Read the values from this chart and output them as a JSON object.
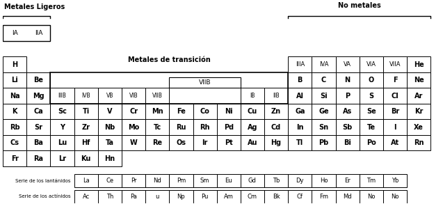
{
  "bg_color": "#ffffff",
  "label_metales_ligeros": "Metales Ligeros",
  "label_metales_transicion": "Metales de transición",
  "label_no_metales": "No metales",
  "label_serie_lantanidos": "Serie de los lantánidos",
  "label_serie_actinidos": "Serie de los actínidos",
  "elements_grid": [
    [
      "H",
      0,
      2
    ],
    [
      "He",
      17,
      2
    ],
    [
      "Li",
      0,
      3
    ],
    [
      "Be",
      1,
      3
    ],
    [
      "B",
      12,
      3
    ],
    [
      "C",
      13,
      3
    ],
    [
      "N",
      14,
      3
    ],
    [
      "O",
      15,
      3
    ],
    [
      "F",
      16,
      3
    ],
    [
      "Ne",
      17,
      3
    ],
    [
      "Na",
      0,
      4
    ],
    [
      "Mg",
      1,
      4
    ],
    [
      "Al",
      12,
      4
    ],
    [
      "Si",
      13,
      4
    ],
    [
      "P",
      14,
      4
    ],
    [
      "S",
      15,
      4
    ],
    [
      "Cl",
      16,
      4
    ],
    [
      "Ar",
      17,
      4
    ],
    [
      "K",
      0,
      5
    ],
    [
      "Ca",
      1,
      5
    ],
    [
      "Sc",
      2,
      5
    ],
    [
      "Ti",
      3,
      5
    ],
    [
      "V",
      4,
      5
    ],
    [
      "Cr",
      5,
      5
    ],
    [
      "Mn",
      6,
      5
    ],
    [
      "Fe",
      7,
      5
    ],
    [
      "Co",
      8,
      5
    ],
    [
      "Ni",
      9,
      5
    ],
    [
      "Cu",
      10,
      5
    ],
    [
      "Zn",
      11,
      5
    ],
    [
      "Ga",
      12,
      5
    ],
    [
      "Ge",
      13,
      5
    ],
    [
      "As",
      14,
      5
    ],
    [
      "Se",
      15,
      5
    ],
    [
      "Br",
      16,
      5
    ],
    [
      "Kr",
      17,
      5
    ],
    [
      "Rb",
      0,
      6
    ],
    [
      "Sr",
      1,
      6
    ],
    [
      "Y",
      2,
      6
    ],
    [
      "Zr",
      3,
      6
    ],
    [
      "Nb",
      4,
      6
    ],
    [
      "Mo",
      5,
      6
    ],
    [
      "Tc",
      6,
      6
    ],
    [
      "Ru",
      7,
      6
    ],
    [
      "Rh",
      8,
      6
    ],
    [
      "Pd",
      9,
      6
    ],
    [
      "Ag",
      10,
      6
    ],
    [
      "Cd",
      11,
      6
    ],
    [
      "In",
      12,
      6
    ],
    [
      "Sn",
      13,
      6
    ],
    [
      "Sb",
      14,
      6
    ],
    [
      "Te",
      15,
      6
    ],
    [
      "I",
      16,
      6
    ],
    [
      "Xe",
      17,
      6
    ],
    [
      "Cs",
      0,
      7
    ],
    [
      "Ba",
      1,
      7
    ],
    [
      "Lu",
      2,
      7
    ],
    [
      "Hf",
      3,
      7
    ],
    [
      "Ta",
      4,
      7
    ],
    [
      "W",
      5,
      7
    ],
    [
      "Re",
      6,
      7
    ],
    [
      "Os",
      7,
      7
    ],
    [
      "Ir",
      8,
      7
    ],
    [
      "Pt",
      9,
      7
    ],
    [
      "Au",
      10,
      7
    ],
    [
      "Hg",
      11,
      7
    ],
    [
      "Tl",
      12,
      7
    ],
    [
      "Pb",
      13,
      7
    ],
    [
      "Bi",
      14,
      7
    ],
    [
      "Po",
      15,
      7
    ],
    [
      "At",
      16,
      7
    ],
    [
      "Rn",
      17,
      7
    ],
    [
      "Fr",
      0,
      8
    ],
    [
      "Ra",
      1,
      8
    ],
    [
      "Lr",
      2,
      8
    ],
    [
      "Ku",
      3,
      8
    ],
    [
      "Hn",
      4,
      8
    ]
  ],
  "group_labels_row4": [
    [
      "IIIB",
      2
    ],
    [
      "IVB",
      3
    ],
    [
      "VB",
      4
    ],
    [
      "VIB",
      5
    ],
    [
      "VIIB",
      6
    ],
    [
      "IB",
      10
    ],
    [
      "IIB",
      11
    ]
  ],
  "right_group_headers": [
    [
      "IIIA",
      12
    ],
    [
      "IVA",
      13
    ],
    [
      "VA",
      14
    ],
    [
      "VIA",
      15
    ],
    [
      "VIIA",
      16
    ]
  ],
  "lanthanides": [
    "La",
    "Ce",
    "Pr",
    "Nd",
    "Pm",
    "Sm",
    "Eu",
    "Gd",
    "Tb",
    "Dy",
    "Ho",
    "Er",
    "Tm",
    "Yb"
  ],
  "actinides": [
    "Ac",
    "Th",
    "Pa",
    "u",
    "Np",
    "Pu",
    "Am",
    "Cm",
    "Bk",
    "Cf",
    "Fm",
    "Md",
    "No",
    "No"
  ]
}
